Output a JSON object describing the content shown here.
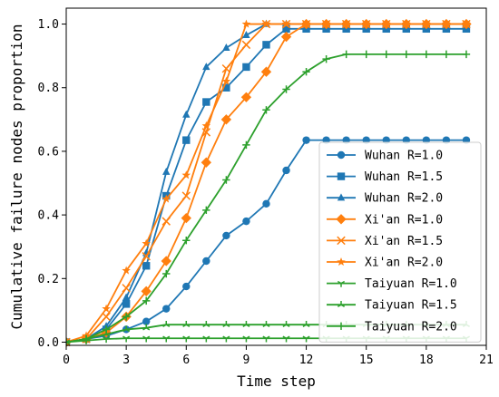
{
  "chart_data": {
    "type": "line",
    "title": "",
    "xlabel": "Time step",
    "ylabel": "Cumulative failure nodes proportion",
    "xlim": [
      0,
      21
    ],
    "ylim": [
      -0.01,
      1.05
    ],
    "xticks": [
      "0",
      "3",
      "6",
      "9",
      "12",
      "15",
      "18",
      "21"
    ],
    "yticks": [
      "0.0",
      "0.2",
      "0.4",
      "0.6",
      "0.8",
      "1.0"
    ],
    "x": [
      0,
      1,
      2,
      3,
      4,
      5,
      6,
      7,
      8,
      9,
      10,
      11,
      12,
      13,
      14,
      15,
      16,
      17,
      18,
      19,
      20
    ],
    "legend_position": "lower-right",
    "grid": false,
    "series": [
      {
        "name": "Wuhan R=1.0",
        "color": "#1f77b4",
        "marker": "circle",
        "values": [
          0,
          0.01,
          0.02,
          0.04,
          0.065,
          0.105,
          0.175,
          0.255,
          0.335,
          0.38,
          0.435,
          0.54,
          0.635,
          0.635,
          0.635,
          0.635,
          0.635,
          0.635,
          0.635,
          0.635,
          0.635
        ]
      },
      {
        "name": "Wuhan R=1.5",
        "color": "#1f77b4",
        "marker": "square",
        "values": [
          0,
          0.01,
          0.04,
          0.12,
          0.24,
          0.46,
          0.635,
          0.755,
          0.8,
          0.865,
          0.935,
          0.985,
          0.985,
          0.985,
          0.985,
          0.985,
          0.985,
          0.985,
          0.985,
          0.985,
          0.985
        ]
      },
      {
        "name": "Wuhan R=2.0",
        "color": "#1f77b4",
        "marker": "triangle",
        "values": [
          0,
          0.01,
          0.05,
          0.14,
          0.28,
          0.535,
          0.715,
          0.865,
          0.925,
          0.965,
          1.0,
          1.0,
          1.0,
          1.0,
          1.0,
          1.0,
          1.0,
          1.0,
          1.0,
          1.0,
          1.0
        ]
      },
      {
        "name": "Xi'an R=1.0",
        "color": "#ff7f0e",
        "marker": "diamond",
        "values": [
          0,
          0.01,
          0.03,
          0.08,
          0.16,
          0.255,
          0.39,
          0.565,
          0.7,
          0.77,
          0.85,
          0.96,
          1.0,
          1.0,
          1.0,
          1.0,
          1.0,
          1.0,
          1.0,
          1.0,
          1.0
        ]
      },
      {
        "name": "Xi'an R=1.5",
        "color": "#ff7f0e",
        "marker": "x",
        "values": [
          0,
          0.01,
          0.08,
          0.17,
          0.27,
          0.38,
          0.46,
          0.66,
          0.86,
          0.935,
          1.0,
          1.0,
          1.0,
          1.0,
          1.0,
          1.0,
          1.0,
          1.0,
          1.0,
          1.0,
          1.0
        ]
      },
      {
        "name": "Xi'an R=2.0",
        "color": "#ff7f0e",
        "marker": "star",
        "values": [
          0,
          0.02,
          0.105,
          0.225,
          0.31,
          0.45,
          0.525,
          0.68,
          0.82,
          1.0,
          1.0,
          1.0,
          1.0,
          1.0,
          1.0,
          1.0,
          1.0,
          1.0,
          1.0,
          1.0,
          1.0
        ]
      },
      {
        "name": "Taiyuan R=1.0",
        "color": "#2ca02c",
        "marker": "tri_down",
        "values": [
          0,
          0.005,
          0.01,
          0.012,
          0.012,
          0.012,
          0.012,
          0.012,
          0.012,
          0.012,
          0.012,
          0.012,
          0.012,
          0.012,
          0.012,
          0.012,
          0.012,
          0.012,
          0.012,
          0.012,
          0.012
        ]
      },
      {
        "name": "Taiyuan R=1.5",
        "color": "#2ca02c",
        "marker": "tri_up",
        "values": [
          0,
          0.01,
          0.025,
          0.04,
          0.045,
          0.055,
          0.055,
          0.055,
          0.055,
          0.055,
          0.055,
          0.055,
          0.055,
          0.055,
          0.055,
          0.055,
          0.055,
          0.055,
          0.055,
          0.055,
          0.055
        ]
      },
      {
        "name": "Taiyuan R=2.0",
        "color": "#2ca02c",
        "marker": "plus",
        "values": [
          0,
          0.01,
          0.04,
          0.08,
          0.13,
          0.215,
          0.32,
          0.415,
          0.51,
          0.62,
          0.73,
          0.795,
          0.85,
          0.89,
          0.905,
          0.905,
          0.905,
          0.905,
          0.905,
          0.905,
          0.905
        ]
      }
    ]
  }
}
